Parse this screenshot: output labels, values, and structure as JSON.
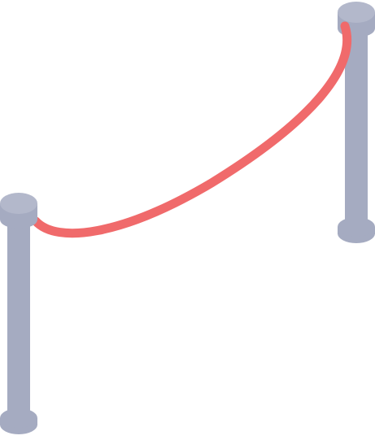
{
  "illustration": {
    "subject": "rope-barrier",
    "colors": {
      "post_body": "#a5abc1",
      "post_cap": "#a5abc1",
      "post_cap_top": "#b3b8cb",
      "rope": "#f06a6b",
      "background": "#ffffff"
    },
    "icons": [
      "left-post-icon",
      "right-post-icon",
      "velvet-rope-icon"
    ]
  }
}
